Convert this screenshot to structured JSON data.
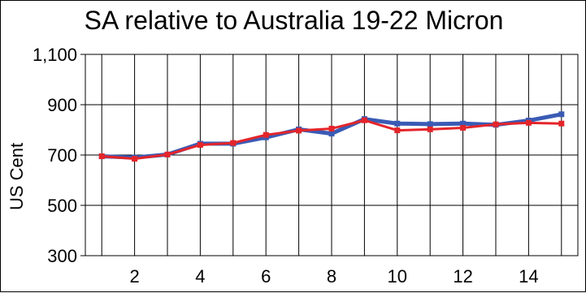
{
  "chart_data": {
    "type": "line",
    "title": "SA relative to Australia 19-22 Micron",
    "xlabel": "",
    "ylabel": "US Cent",
    "x": [
      1,
      2,
      3,
      4,
      5,
      6,
      7,
      8,
      9,
      10,
      11,
      12,
      13,
      14,
      15
    ],
    "xlim": [
      0.5,
      15.5
    ],
    "x_ticks": [
      2,
      4,
      6,
      8,
      10,
      12,
      14
    ],
    "ylim": [
      300,
      1100
    ],
    "y_ticks": [
      300,
      500,
      700,
      900,
      1100
    ],
    "y_tick_labels": [
      "300",
      "500",
      "700",
      "900",
      "1,100"
    ],
    "grid": true,
    "legend": "none",
    "series": [
      {
        "color": "#3a5bb5",
        "marker": "square",
        "values": [
          695,
          690,
          702,
          745,
          745,
          770,
          802,
          785,
          843,
          825,
          823,
          825,
          820,
          837,
          862
        ]
      },
      {
        "color": "#e4252a",
        "marker": "square",
        "values": [
          695,
          685,
          702,
          740,
          748,
          780,
          797,
          805,
          838,
          798,
          802,
          808,
          822,
          828,
          825
        ]
      }
    ]
  }
}
